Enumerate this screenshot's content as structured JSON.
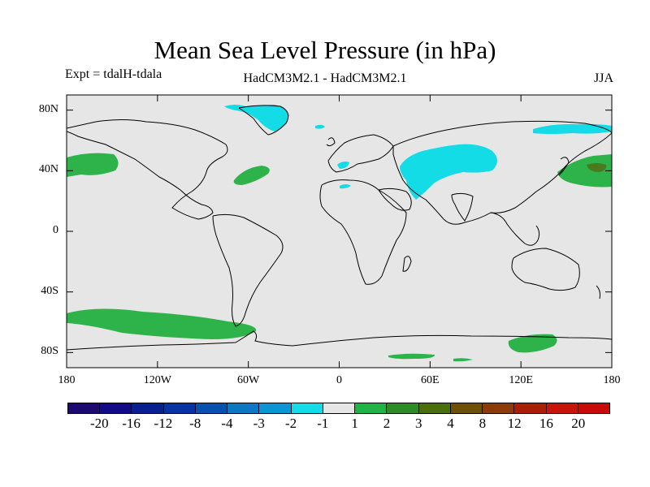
{
  "header": {
    "title": "Mean Sea Level Pressure (in hPa)",
    "experiment": "Expt = tdalH-tdala",
    "models": "HadCM3M2.1 - HadCM3M2.1",
    "season": "JJA"
  },
  "axes": {
    "latitude_ticks": [
      {
        "value": 80,
        "label": "80N"
      },
      {
        "value": 40,
        "label": "40N"
      },
      {
        "value": 0,
        "label": "0"
      },
      {
        "value": -40,
        "label": "40S"
      },
      {
        "value": -80,
        "label": "80S"
      }
    ],
    "longitude_ticks": [
      {
        "value": -180,
        "label": "180"
      },
      {
        "value": -120,
        "label": "120W"
      },
      {
        "value": -60,
        "label": "60W"
      },
      {
        "value": 0,
        "label": "0"
      },
      {
        "value": 60,
        "label": "60E"
      },
      {
        "value": 120,
        "label": "120E"
      },
      {
        "value": 180,
        "label": "180"
      }
    ],
    "lon_range": [
      -180,
      180
    ],
    "lat_range": [
      -90,
      90
    ]
  },
  "colorbar": {
    "colors": [
      "#1c0a6e",
      "#120a8a",
      "#0a1e96",
      "#0a32a8",
      "#0a50b4",
      "#0a78c3",
      "#0a96d2",
      "#14dce6",
      "#e6e6e6",
      "#1eb446",
      "#2d8c28",
      "#4b6e0f",
      "#6e500a",
      "#8c3c0a",
      "#aa1e0a",
      "#c8140a",
      "#c80a0a"
    ],
    "labels": [
      "-20",
      "-16",
      "-12",
      "-8",
      "-4",
      "-3",
      "-2",
      "-1",
      "1",
      "2",
      "3",
      "4",
      "8",
      "12",
      "16",
      "20"
    ]
  },
  "colors": {
    "ocean_background": "#e6e6e6",
    "positive_anomaly": "#2db34a",
    "strong_positive_anomaly": "#4b7a1e",
    "negative_anomaly": "#14dce6",
    "coastline": "#000000"
  },
  "anomaly_regions": [
    {
      "name": "NE Pacific high",
      "sign": "positive",
      "lon": -170,
      "lat": 43
    },
    {
      "name": "North Atlantic",
      "sign": "positive",
      "lon": -55,
      "lat": 38
    },
    {
      "name": "NW Pacific",
      "sign": "positive",
      "lon": 165,
      "lat": 42
    },
    {
      "name": "Southern Ocean Pacific sector",
      "sign": "positive",
      "lon": -110,
      "lat": -60
    },
    {
      "name": "Southern Ocean Indian sector",
      "sign": "positive",
      "lon": 120,
      "lat": -73
    },
    {
      "name": "Greenland",
      "sign": "negative",
      "lon": -38,
      "lat": 75
    },
    {
      "name": "Central Asia",
      "sign": "negative",
      "lon": 85,
      "lat": 45
    },
    {
      "name": "East Siberian Sea",
      "sign": "negative",
      "lon": 155,
      "lat": 70
    }
  ]
}
